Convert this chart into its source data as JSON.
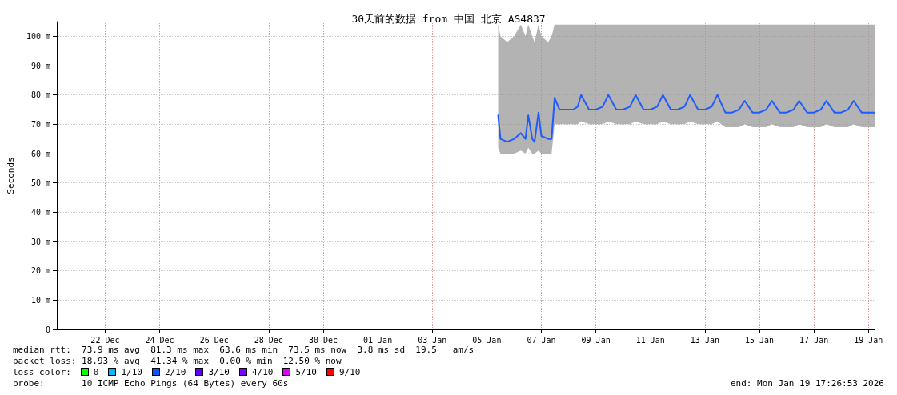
{
  "chart_data": {
    "type": "line",
    "title": "30天前的数据 from 中国 北京 AS4837",
    "ylabel": "Seconds",
    "xlim": [
      "2025-12-20T17:26",
      "2026-01-19T17:26"
    ],
    "xticks": [
      {
        "value": "2025-12-22T12:00",
        "label": "22 Dec"
      },
      {
        "value": "2025-12-24T12:00",
        "label": "24 Dec"
      },
      {
        "value": "2025-12-26T12:00",
        "label": "26 Dec"
      },
      {
        "value": "2025-12-28T12:00",
        "label": "28 Dec"
      },
      {
        "value": "2025-12-30T12:00",
        "label": "30 Dec"
      },
      {
        "value": "2026-01-01T12:00",
        "label": "01 Jan"
      },
      {
        "value": "2026-01-03T12:00",
        "label": "03 Jan"
      },
      {
        "value": "2026-01-05T12:00",
        "label": "05 Jan"
      },
      {
        "value": "2026-01-07T12:00",
        "label": "07 Jan"
      },
      {
        "value": "2026-01-09T12:00",
        "label": "09 Jan"
      },
      {
        "value": "2026-01-11T12:00",
        "label": "11 Jan"
      },
      {
        "value": "2026-01-13T12:00",
        "label": "13 Jan"
      },
      {
        "value": "2026-01-15T12:00",
        "label": "15 Jan"
      },
      {
        "value": "2026-01-17T12:00",
        "label": "17 Jan"
      },
      {
        "value": "2026-01-19T12:00",
        "label": "19 Jan"
      }
    ],
    "ylim": [
      0,
      105
    ],
    "yticks": [
      0,
      {
        "value": 10,
        "label": "10 m"
      },
      {
        "value": 20,
        "label": "20 m"
      },
      {
        "value": 30,
        "label": "30 m"
      },
      {
        "value": 40,
        "label": "40 m"
      },
      {
        "value": 50,
        "label": "50 m"
      },
      {
        "value": 60,
        "label": "60 m"
      },
      {
        "value": 70,
        "label": "70 m"
      },
      {
        "value": 80,
        "label": "80 m"
      },
      {
        "value": 90,
        "label": "90 m"
      },
      {
        "value": 100,
        "label": "100 m"
      }
    ],
    "grid": true,
    "series": [
      {
        "color": "#1f5bff",
        "x": [
          "2026-01-05T22:00",
          "2026-01-06T00:00",
          "2026-01-06T06:00",
          "2026-01-06T12:00",
          "2026-01-06T18:00",
          "2026-01-06T22:00",
          "2026-01-07T00:30",
          "2026-01-07T04:00",
          "2026-01-07T06:00",
          "2026-01-07T09:30",
          "2026-01-07T12:00",
          "2026-01-07T18:00",
          "2026-01-07T21:00",
          "2026-01-07T23:40",
          "2026-01-08T04:00",
          "2026-01-08T10:00",
          "2026-01-08T16:00",
          "2026-01-08T20:00",
          "2026-01-08T23:00",
          "2026-01-09T06:00",
          "2026-01-09T12:00",
          "2026-01-09T18:00",
          "2026-01-09T23:00",
          "2026-01-10T06:00",
          "2026-01-10T12:00",
          "2026-01-10T18:00",
          "2026-01-10T23:00",
          "2026-01-11T06:00",
          "2026-01-11T12:00",
          "2026-01-11T18:00",
          "2026-01-11T23:00",
          "2026-01-12T06:00",
          "2026-01-12T12:00",
          "2026-01-12T18:00",
          "2026-01-12T23:00",
          "2026-01-13T06:00",
          "2026-01-13T12:00",
          "2026-01-13T18:00",
          "2026-01-13T23:00",
          "2026-01-14T06:00",
          "2026-01-14T12:00",
          "2026-01-14T18:00",
          "2026-01-14T23:00",
          "2026-01-15T06:00",
          "2026-01-15T12:00",
          "2026-01-15T18:00",
          "2026-01-15T23:00",
          "2026-01-16T06:00",
          "2026-01-16T12:00",
          "2026-01-16T18:00",
          "2026-01-16T23:00",
          "2026-01-17T06:00",
          "2026-01-17T12:00",
          "2026-01-17T18:00",
          "2026-01-17T23:00",
          "2026-01-18T06:00",
          "2026-01-18T12:00",
          "2026-01-18T18:00",
          "2026-01-18T23:00",
          "2026-01-19T06:00",
          "2026-01-19T12:00",
          "2026-01-19T17:26"
        ],
        "values": [
          73,
          65,
          64,
          65,
          67,
          65,
          73,
          65,
          64,
          74,
          66,
          65,
          65,
          79,
          75,
          75,
          75,
          76,
          80,
          75,
          75,
          76,
          80,
          75,
          75,
          76,
          80,
          75,
          75,
          76,
          80,
          75,
          75,
          76,
          80,
          75,
          75,
          76,
          80,
          74,
          74,
          75,
          78,
          74,
          74,
          75,
          78,
          74,
          74,
          75,
          78,
          74,
          74,
          75,
          78,
          74,
          74,
          75,
          78,
          74,
          74,
          74
        ],
        "lower": [
          62,
          60,
          60,
          60,
          61,
          60,
          62,
          60,
          60,
          61,
          60,
          60,
          60,
          70,
          70,
          70,
          70,
          70,
          71,
          70,
          70,
          70,
          71,
          70,
          70,
          70,
          71,
          70,
          70,
          70,
          71,
          70,
          70,
          70,
          71,
          70,
          70,
          70,
          71,
          69,
          69,
          69,
          70,
          69,
          69,
          69,
          70,
          69,
          69,
          69,
          70,
          69,
          69,
          69,
          70,
          69,
          69,
          69,
          70,
          69,
          69,
          69
        ],
        "upper": [
          104,
          100,
          98,
          100,
          104,
          100,
          104,
          100,
          98,
          104,
          100,
          98,
          100,
          104,
          104,
          104,
          104,
          104,
          104,
          104,
          104,
          104,
          104,
          104,
          104,
          104,
          104,
          104,
          104,
          104,
          104,
          104,
          104,
          104,
          104,
          104,
          104,
          104,
          104,
          104,
          104,
          104,
          104,
          104,
          104,
          104,
          104,
          104,
          104,
          104,
          104,
          104,
          104,
          104,
          104,
          104,
          104,
          104,
          104,
          104,
          104,
          104
        ]
      }
    ],
    "annotations": [
      "median rtt:  73.9 ms avg  81.3 ms max  63.6 ms min  73.5 ms now  3.8 ms sd  19.5   am/s",
      "packet loss: 18.93 % avg  41.34 % max  0.00 % min  12.50 % now",
      "loss color:",
      "0",
      "1/10",
      "2/10",
      "3/10",
      "4/10",
      "5/10",
      "9/10",
      "probe:       10 ICMP Echo Pings (64 Bytes) every 60s",
      "end: Mon Jan 19 17:26:53 2026"
    ]
  }
}
